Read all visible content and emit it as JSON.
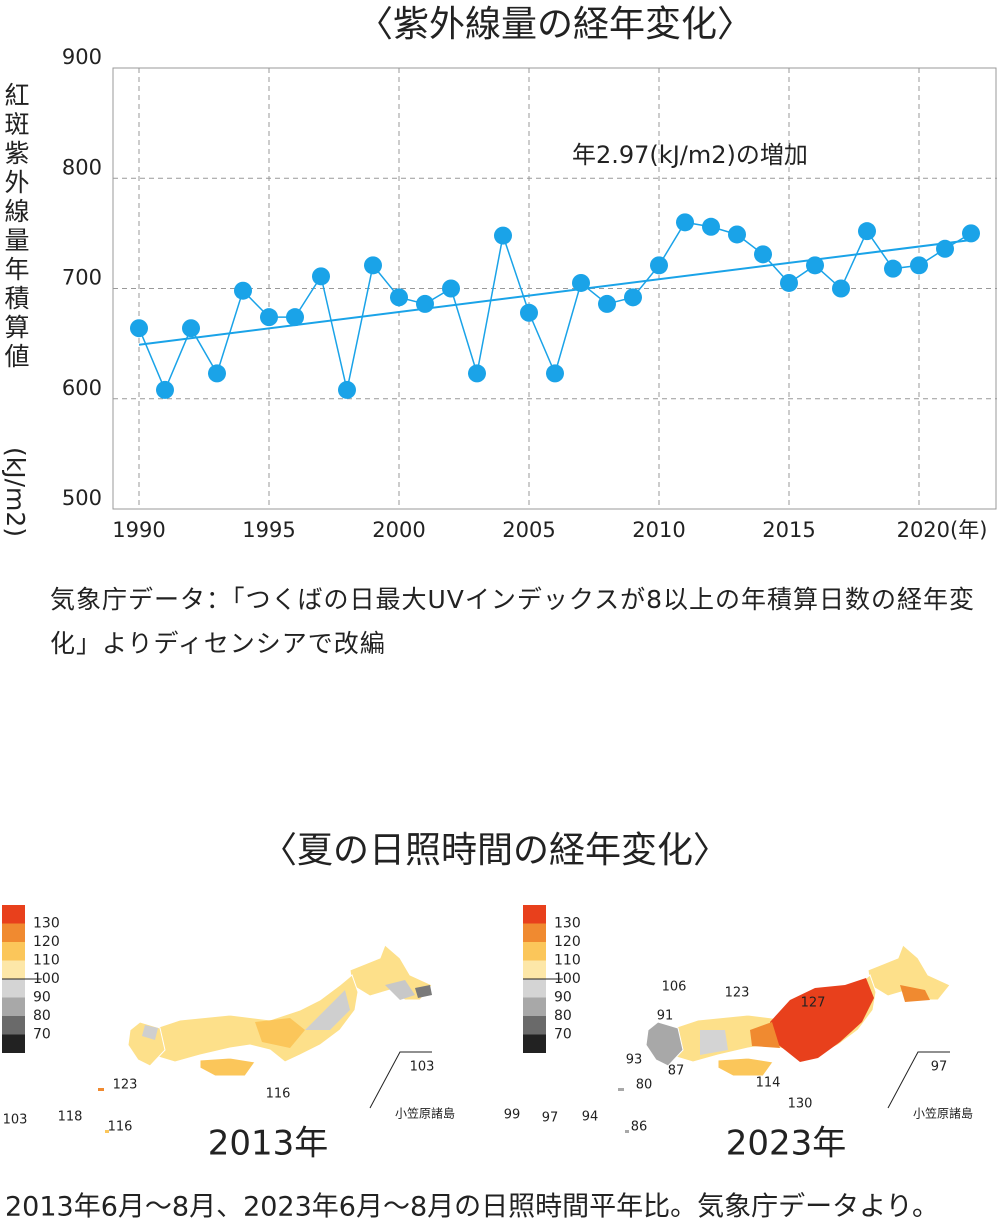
{
  "chart_data": {
    "type": "line",
    "title": "〈紫外線量の経年変化〉",
    "ylabel": "紅斑紫外線量年積算値",
    "yunit": "(kJ/m2)",
    "annotation": "年2.97(kJ/m2)の増加",
    "x": [
      1990,
      1991,
      1992,
      1993,
      1994,
      1995,
      1996,
      1997,
      1998,
      1999,
      2000,
      2001,
      2002,
      2003,
      2004,
      2005,
      2006,
      2007,
      2008,
      2009,
      2010,
      2011,
      2012,
      2013,
      2014,
      2015,
      2016,
      2017,
      2018,
      2019,
      2020,
      2021,
      2022
    ],
    "series": [
      {
        "color": "#1aa3e8",
        "values": [
          664,
          608,
          664,
          623,
          698,
          674,
          674,
          711,
          608,
          721,
          692,
          686,
          700,
          623,
          748,
          678,
          623,
          705,
          686,
          692,
          721,
          760,
          756,
          749,
          731,
          705,
          721,
          700,
          752,
          718,
          721,
          736,
          750
        ]
      }
    ],
    "trend": {
      "x": [
        1990,
        2022
      ],
      "values": [
        649,
        744
      ]
    },
    "xlim": [
      1989,
      2023
    ],
    "ylim": [
      500,
      900
    ],
    "xticks": [
      1990,
      1995,
      2000,
      2005,
      2010,
      2015,
      {
        "value": 2020,
        "label": "2020(年)"
      }
    ],
    "yticks": [
      500,
      600,
      700,
      800,
      900
    ],
    "grid": true
  },
  "source": "気象庁データ：「つくばの日最大UVインデックスが8以上の年積算日数の経年変化」よりディセンシアで改編",
  "maps_title": "〈夏の日照時間の経年変化〉",
  "legend": {
    "labels": [
      130,
      120,
      110,
      100,
      90,
      80,
      70
    ],
    "colors": [
      "#e8401c",
      "#f08a30",
      "#fbc65a",
      "#fde7a8",
      "#d4d4d4",
      "#a8a8a8",
      "#6a6a6a",
      "#222222"
    ]
  },
  "maps": [
    {
      "caption": "2013年",
      "labels": [
        103,
        118,
        116,
        123,
        116,
        103
      ],
      "islands": "小笠原諸島"
    },
    {
      "caption": "2023年",
      "labels": [
        106,
        123,
        127,
        91,
        93,
        87,
        80,
        114,
        130,
        99,
        97,
        94,
        86,
        97
      ],
      "islands": "小笠原諸島"
    }
  ],
  "footnote": "2013年6月〜8月、2023年6月〜8月の日照時間平年比。気象庁データより。"
}
